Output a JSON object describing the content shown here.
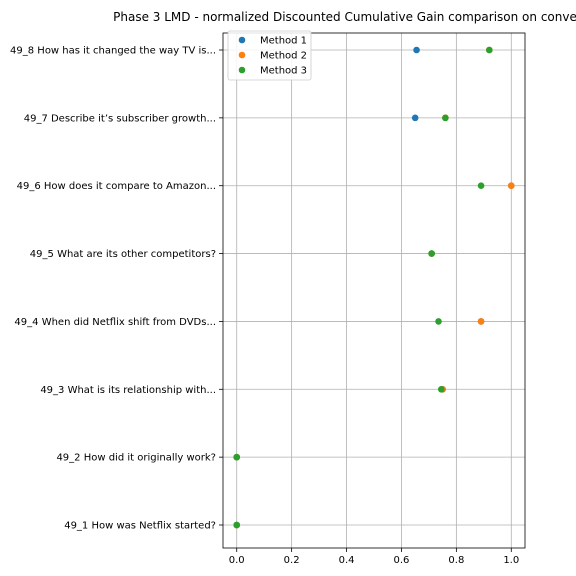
{
  "chart_data": {
    "type": "scatter",
    "title": "Phase 3 LMD - normalized Discounted Cumulative Gain comparison on conve",
    "xlabel": "",
    "ylabel": "",
    "xlim": [
      -0.05,
      1.05
    ],
    "x_ticks": [
      "0.0",
      "0.2",
      "0.4",
      "0.6",
      "0.8",
      "1.0"
    ],
    "x_tick_values": [
      0.0,
      0.2,
      0.4,
      0.6,
      0.8,
      1.0
    ],
    "categories": [
      "49_1 How was Netflix started?",
      "49_2 How did it originally work?",
      "49_3 What is its relationship with...",
      "49_4 When did Netflix shift from DVDs...",
      "49_5 What are its other competitors?",
      "49_6 How does it compare to Amazon...",
      "49_7 Describe it’s subscriber growth...",
      "49_8 How has it changed the way TV is..."
    ],
    "grid": true,
    "legend_position": "top-left",
    "series": [
      {
        "name": "Method 1",
        "color": "#1f77b4",
        "values": [
          0.0,
          0.0,
          0.75,
          0.89,
          0.71,
          1.0,
          0.65,
          0.655
        ]
      },
      {
        "name": "Method 2",
        "color": "#ff7f0e",
        "values": [
          0.0,
          0.0,
          0.75,
          0.89,
          0.71,
          1.0,
          0.76,
          0.92
        ]
      },
      {
        "name": "Method 3",
        "color": "#2ca02c",
        "values": [
          0.0,
          0.0,
          0.745,
          0.735,
          0.71,
          0.89,
          0.76,
          0.92
        ]
      }
    ]
  }
}
